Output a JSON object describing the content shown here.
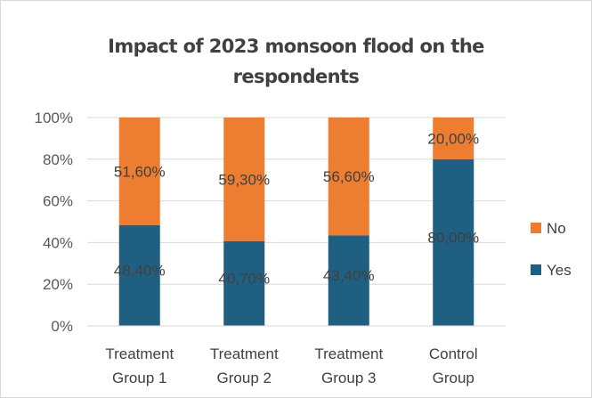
{
  "chart_data": {
    "type": "bar",
    "stacked": true,
    "percent_stacked": true,
    "title": "Impact of 2023 monsoon flood on the respondents",
    "title_lines": [
      "Impact of 2023 monsoon flood on the",
      "respondents"
    ],
    "categories": [
      [
        "Treatment",
        "Group 1"
      ],
      [
        "Treatment",
        "Group 2"
      ],
      [
        "Treatment",
        "Group 3"
      ],
      [
        "Control",
        "Group"
      ]
    ],
    "series": [
      {
        "name": "Yes",
        "color": "#1f5f82",
        "values": [
          48.4,
          40.7,
          43.4,
          80.0
        ],
        "labels": [
          "48,40%",
          "40,70%",
          "43,40%",
          "80,00%"
        ]
      },
      {
        "name": "No",
        "color": "#ed7d31",
        "values": [
          51.6,
          59.3,
          56.6,
          20.0
        ],
        "labels": [
          "51,60%",
          "59,30%",
          "56,60%",
          "20,00%"
        ]
      }
    ],
    "yticks": [
      "0%",
      "20%",
      "40%",
      "60%",
      "80%",
      "100%"
    ],
    "ylim": [
      0,
      100
    ],
    "grid": true,
    "legend": {
      "position": "right",
      "entries": [
        {
          "name": "No",
          "color": "#ed7d31"
        },
        {
          "name": "Yes",
          "color": "#1f5f82"
        }
      ]
    }
  }
}
